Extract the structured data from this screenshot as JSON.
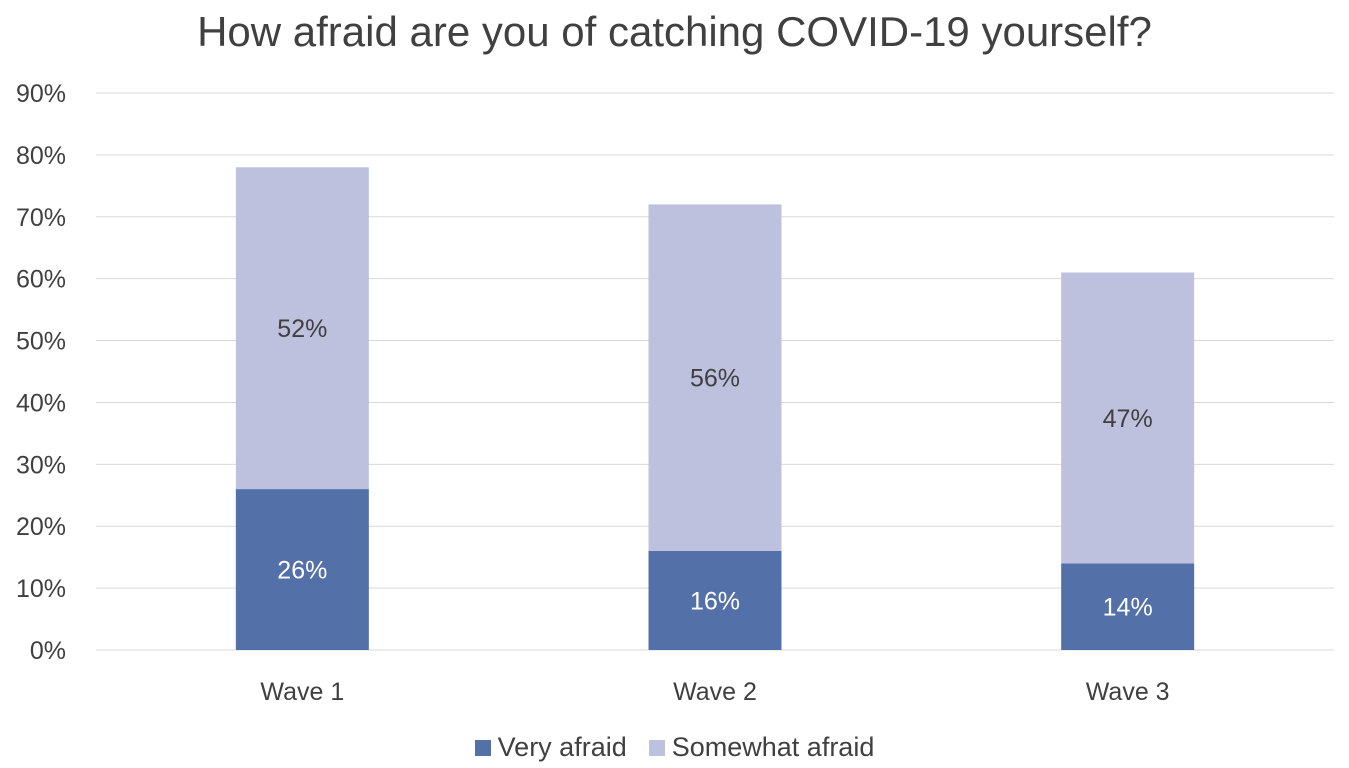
{
  "chart_data": {
    "type": "bar",
    "stacked": true,
    "title": "How afraid are you of catching COVID-19 yourself?",
    "categories": [
      "Wave 1",
      "Wave 2",
      "Wave 3"
    ],
    "series": [
      {
        "name": "Very afraid",
        "values": [
          26,
          16,
          14
        ],
        "labels": [
          "26%",
          "16%",
          "14%"
        ],
        "color": "#5470A8",
        "label_color": "#ffffff"
      },
      {
        "name": "Somewhat afraid",
        "values": [
          52,
          56,
          47
        ],
        "labels": [
          "52%",
          "56%",
          "47%"
        ],
        "color": "#BEC1DD",
        "label_color": "#404040"
      }
    ],
    "ylim": [
      0,
      90
    ],
    "yticks": [
      0,
      10,
      20,
      30,
      40,
      50,
      60,
      70,
      80,
      90
    ],
    "ytick_labels": [
      "0%",
      "10%",
      "20%",
      "30%",
      "40%",
      "50%",
      "60%",
      "70%",
      "80%",
      "90%"
    ],
    "grid": true,
    "legend_position": "bottom",
    "gridline_color": "#D9D9D9",
    "text_color": "#404040"
  }
}
